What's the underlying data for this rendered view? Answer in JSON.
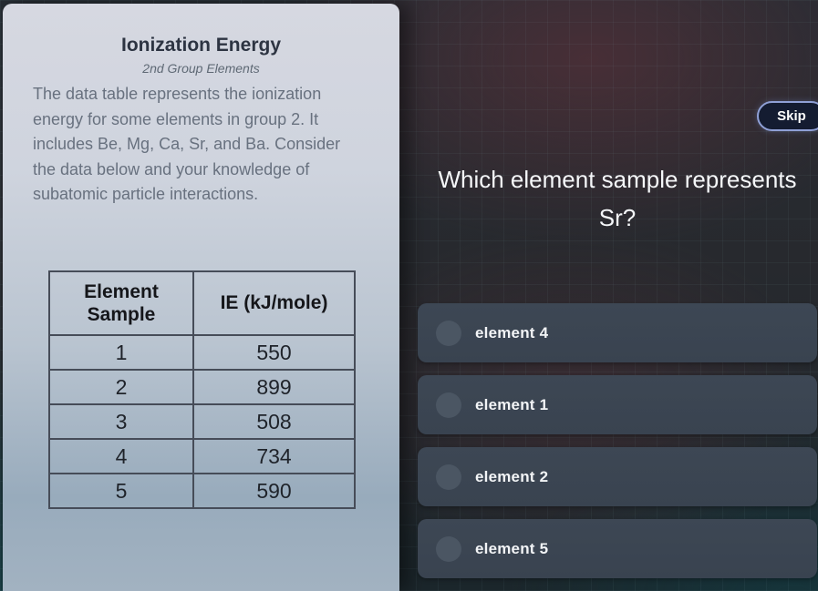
{
  "card": {
    "title": "Ionization Energy",
    "subtitle": "2nd Group Elements",
    "description_lines": [
      "The data table represents the ionization",
      "energy for some elements in group 2. It",
      "includes Be, Mg, Ca, Sr, and Ba. Consider",
      "the data below and your knowledge of",
      "subatomic particle interactions."
    ],
    "table": {
      "headers": [
        "Element Sample",
        "IE (kJ/mole)"
      ],
      "rows": [
        {
          "sample": "1",
          "ie": "550"
        },
        {
          "sample": "2",
          "ie": "899"
        },
        {
          "sample": "3",
          "ie": "508"
        },
        {
          "sample": "4",
          "ie": "734"
        },
        {
          "sample": "5",
          "ie": "590"
        }
      ]
    }
  },
  "quiz": {
    "skip_label": "Skip",
    "question": "Which element sample represents Sr?"
  },
  "options": [
    {
      "label": "element 4"
    },
    {
      "label": "element 1"
    },
    {
      "label": "element 2"
    },
    {
      "label": "element 5"
    }
  ],
  "colors": {
    "card_top": "#d6d8e1",
    "card_bottom": "#a2b2c1",
    "panel_base": "#232a31",
    "panel_maroon_tint": "#63313a",
    "panel_teal_tint": "#0e5056",
    "option_bg": "#3b4552",
    "radio_bg": "#4b5663",
    "skip_bg": "#141c31",
    "skip_border": "#8fa0d6",
    "table_border": "#464c58"
  }
}
